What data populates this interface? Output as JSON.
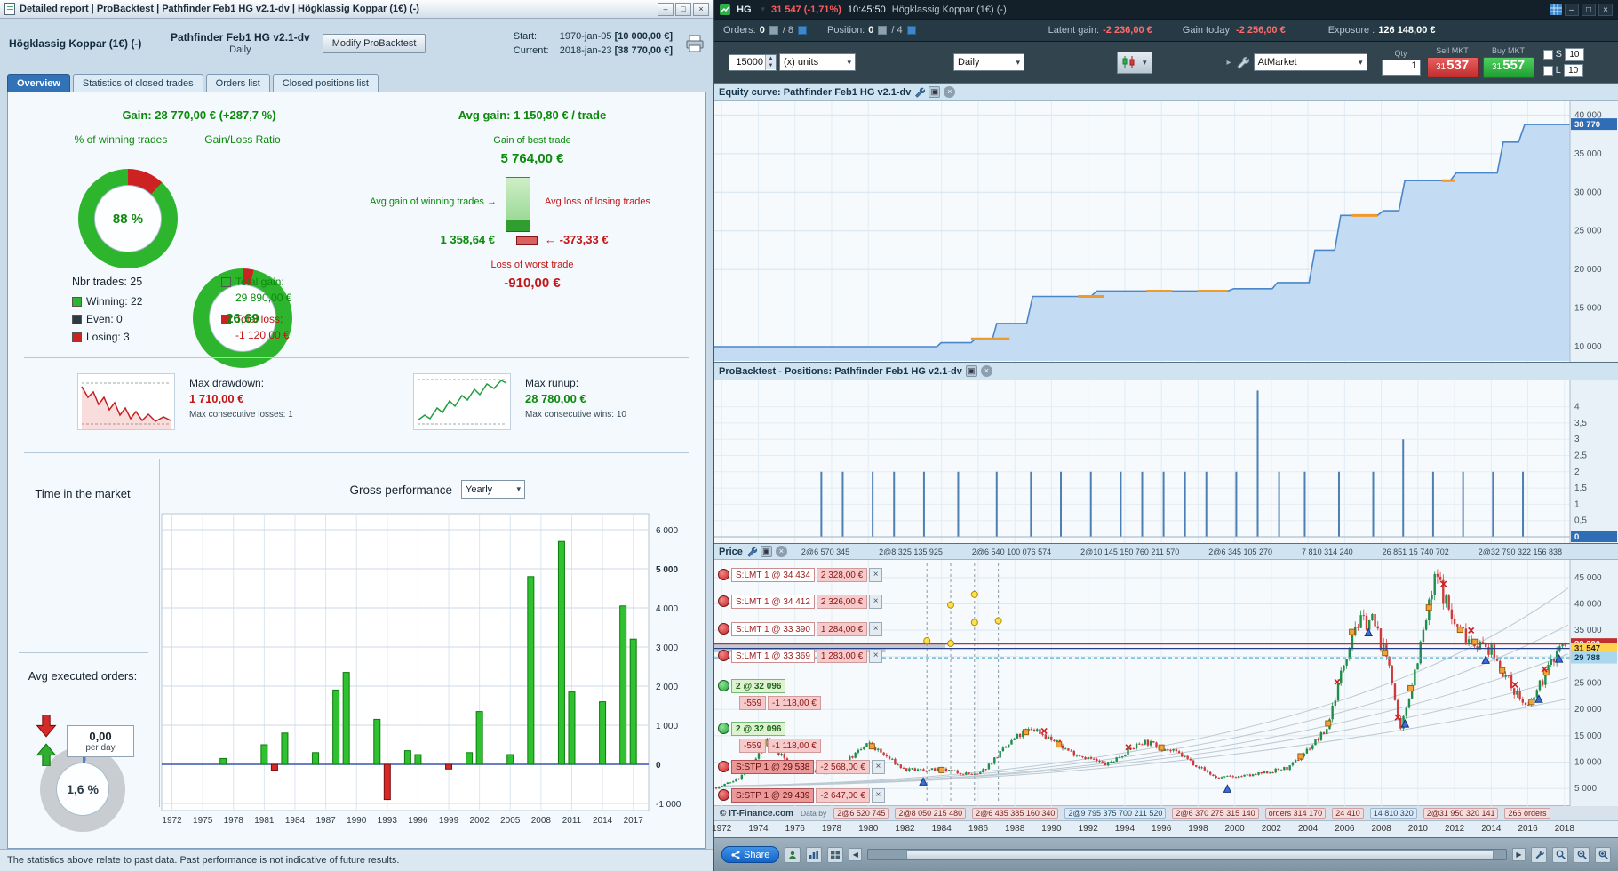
{
  "icons": {
    "caret": "▾",
    "close": "×",
    "minimize": "–",
    "maximize": "□",
    "spin_up": "▲",
    "spin_down": "▼",
    "left": "◀",
    "right": "▶",
    "play": "▸",
    "arrow_right": "→",
    "arrow_left": "←"
  },
  "report": {
    "title": "Detailed report | ProBacktest | Pathfinder Feb1 HG v2.1-dv | Högklassig Koppar (1€) (-)",
    "header": {
      "instrument": "Högklassig Koppar (1€) (-)",
      "strategy": "Pathfinder Feb1 HG v2.1-dv",
      "timeframe": "Daily",
      "modify_button": "Modify ProBacktest",
      "start_label": "Start:",
      "start_date": "1970-jan-05",
      "start_amount": "[10 000,00 €]",
      "current_label": "Current:",
      "current_date": "2018-jan-23",
      "current_amount": "[38 770,00 €]"
    },
    "tabs": [
      {
        "label": "Overview"
      },
      {
        "label": "Statistics of closed trades"
      },
      {
        "label": "Orders list"
      },
      {
        "label": "Closed positions list"
      }
    ],
    "stats": {
      "gain_label": "Gain:",
      "gain_value": "28 770,00 € (+287,7 %)",
      "winning_title": "% of winning trades",
      "winning_value": "88 %",
      "ratio_title": "Gain/Loss Ratio",
      "ratio_value": "26,69",
      "nbr_trades": "Nbr trades: 25",
      "winning": "Winning: 22",
      "even": "Even: 0",
      "losing": "Losing: 3",
      "total_gain_label": "Total gain:",
      "total_gain_value": "29 890,00 €",
      "total_loss_label": "Total loss:",
      "total_loss_value": "-1 120,00 €",
      "avg_gain_label": "Avg gain:",
      "avg_gain_value": "1 150,80 € / trade",
      "best_trade_label": "Gain of best trade",
      "best_trade_value": "5 764,00 €",
      "avg_win_label": "Avg gain of winning trades",
      "avg_win_value": "1 358,64 €",
      "avg_loss_label": "Avg loss of losing trades",
      "avg_loss_value": "-373,33 €",
      "worst_trade_label": "Loss of worst trade",
      "worst_trade_value": "-910,00 €",
      "max_dd_label": "Max drawdown:",
      "max_dd_value": "1 710,00 €",
      "max_dd_sub": "Max consecutive losses: 1",
      "max_ru_label": "Max runup:",
      "max_ru_value": "28 780,00 €",
      "max_ru_sub": "Max consecutive wins: 10",
      "time_market_title": "Time in the market",
      "time_market_value": "1,6 %",
      "avg_orders_title": "Avg executed orders:",
      "avg_orders_value": "0,00",
      "avg_orders_unit": "per day"
    },
    "gross_perf_title": "Gross performance",
    "gross_perf_period": "Yearly",
    "status": "The statistics above relate to past data. Past performance is not indicative of future results."
  },
  "chart": {
    "title": {
      "symbol": "HG",
      "price": "31 547 (-1,71%)",
      "time": "10:45:50",
      "name": "Högklassig Koppar (1€) (-)"
    },
    "orders_row": {
      "orders_label": "Orders:",
      "orders_value": "0",
      "orders_max": "/ 8",
      "position_label": "Position:",
      "position_value": "0",
      "position_max": "/ 4",
      "latent_label": "Latent gain:",
      "latent_value": "-2 236,00 €",
      "today_label": "Gain today:",
      "today_value": "-2 256,00 €",
      "exposure_label": "Exposure :",
      "exposure_value": "126 148,00 €"
    },
    "toolbar": {
      "quantity": "15000",
      "units": "(x) units",
      "timeframe": "Daily",
      "order_type": "AtMarket",
      "qty_label": "Qty",
      "qty_value": "1",
      "sell_label": "Sell MKT",
      "sell_small": "31",
      "sell_big": "537",
      "buy_label": "Buy MKT",
      "buy_small": "31",
      "buy_big": "557",
      "s_label": "S",
      "s_value": "10",
      "l_label": "L",
      "l_value": "10"
    },
    "equity_panel_title": "Equity curve: Pathfinder Feb1 HG v2.1-dv",
    "positions_panel_title": "ProBacktest - Positions: Pathfinder Feb1 HG v2.1-dv",
    "price_panel": {
      "title": "Price",
      "annotations_top": [
        "2@6 570 345",
        "2@8 325 135 925",
        "2@6 540 100 076 574",
        "2@10 145 150 760 211 570",
        "2@6 345 105 270",
        "7 810 314 240",
        "26 851 15 740 702",
        "2@32 790 322 156 838"
      ],
      "copyright": "© IT-Finance.com",
      "data_by": "Data by",
      "annotations_bottom": [
        "2@6 520 745",
        "2@8 050 215 480",
        "2@6 435 385 160 340",
        "2@9 795 375 700 211 520",
        "2@6 370 275 315 140",
        "orders 314 170",
        "24 410",
        "14 810 320",
        "2@31 950 320 141",
        "266 orders"
      ],
      "orders": [
        {
          "kind": "limit",
          "label": "S:LMT 1 @ 34 434",
          "value": "2 328,00 €"
        },
        {
          "kind": "limit",
          "label": "S:LMT 1 @ 34 412",
          "value": "2 326,00 €"
        },
        {
          "kind": "limit",
          "label": "S:LMT 1 @ 33 390",
          "value": "1 284,00 €"
        },
        {
          "kind": "limit",
          "label": "S:LMT 1 @ 33 369",
          "value": "1 283,00 €"
        },
        {
          "kind": "position",
          "label": "2 @ 32 096"
        },
        {
          "kind": "pnl",
          "label": "-559",
          "value": "-1 118,00 €"
        },
        {
          "kind": "position",
          "label": "2 @ 32 096"
        },
        {
          "kind": "pnl",
          "label": "-559",
          "value": "-1 118,00 €"
        },
        {
          "kind": "stop",
          "label": "S:STP 1 @ 29 538",
          "value": "-2 568,00 €"
        },
        {
          "kind": "stop",
          "label": "S:STP 1 @ 29 439",
          "value": "-2 647,00 €"
        }
      ]
    },
    "bottom_toolbar": {
      "share": "Share"
    }
  },
  "chart_data": [
    {
      "id": "winning_donut",
      "type": "pie",
      "title": "% of winning trades",
      "center_text": "88 %",
      "slices": [
        {
          "name": "losing",
          "pct": 12,
          "color": "#cc2222"
        },
        {
          "name": "winning",
          "pct": 88,
          "color": "#2db52d"
        }
      ]
    },
    {
      "id": "gainloss_donut",
      "type": "pie",
      "title": "Gain/Loss Ratio",
      "center_text": "26,69",
      "slices": [
        {
          "name": "loss",
          "pct": 3.6,
          "color": "#cc2222"
        },
        {
          "name": "gain",
          "pct": 96.4,
          "color": "#2db52d"
        }
      ]
    },
    {
      "id": "time_donut",
      "type": "pie",
      "title": "Time in the market",
      "center_text": "1,6 %",
      "slices": [
        {
          "name": "in_market",
          "pct": 1.6,
          "color": "#4f81c7"
        },
        {
          "name": "out_of_market",
          "pct": 98.4,
          "color": "#c9cdd2"
        }
      ]
    },
    {
      "id": "gross_performance",
      "type": "bar",
      "title": "Gross performance",
      "period": "Yearly",
      "ylim": [
        -1000,
        6000
      ],
      "yticks": [
        6000,
        5000,
        4000,
        3000,
        2000,
        1000,
        0,
        -1000
      ],
      "ytick_labels": [
        "6 000",
        "5 000",
        "4 000",
        "3 000",
        "2 000",
        "1 000",
        "0",
        "-1 000"
      ],
      "xticks": [
        1972,
        1975,
        1978,
        1981,
        1984,
        1987,
        1990,
        1993,
        1996,
        1999,
        2002,
        2005,
        2008,
        2011,
        2014,
        2017
      ],
      "bars": [
        [
          1977,
          150
        ],
        [
          1981,
          500
        ],
        [
          1982,
          -150
        ],
        [
          1983,
          800
        ],
        [
          1986,
          300
        ],
        [
          1988,
          1900
        ],
        [
          1989,
          2350
        ],
        [
          1992,
          1150
        ],
        [
          1993,
          -900
        ],
        [
          1995,
          350
        ],
        [
          1996,
          250
        ],
        [
          1999,
          -120
        ],
        [
          2001,
          300
        ],
        [
          2002,
          1350
        ],
        [
          2005,
          250
        ],
        [
          2007,
          4800
        ],
        [
          2010,
          5700
        ],
        [
          2011,
          1850
        ],
        [
          2014,
          1600
        ],
        [
          2016,
          4050
        ],
        [
          2017,
          3200
        ]
      ]
    },
    {
      "id": "equity_curve",
      "type": "area",
      "title": "Equity curve: Pathfinder Feb1 HG v2.1-dv",
      "ylim": [
        8500,
        41200
      ],
      "yticks": [
        40000,
        35000,
        30000,
        25000,
        20000,
        15000,
        10000
      ],
      "ytick_labels": [
        "40 000",
        "35 000",
        "30 000",
        "25 000",
        "20 000",
        "15 000",
        "10 000"
      ],
      "current": {
        "text": "38 770",
        "value": 38770
      },
      "points": [
        [
          0,
          10000
        ],
        [
          0.26,
          10000
        ],
        [
          0.265,
          10500
        ],
        [
          0.3,
          10500
        ],
        [
          0.305,
          11000
        ],
        [
          0.325,
          11000
        ],
        [
          0.33,
          13000
        ],
        [
          0.365,
          13000
        ],
        [
          0.372,
          16500
        ],
        [
          0.44,
          16500
        ],
        [
          0.447,
          17200
        ],
        [
          0.6,
          17200
        ],
        [
          0.607,
          17500
        ],
        [
          0.652,
          17500
        ],
        [
          0.658,
          18300
        ],
        [
          0.695,
          18300
        ],
        [
          0.702,
          22500
        ],
        [
          0.725,
          22500
        ],
        [
          0.732,
          27000
        ],
        [
          0.775,
          27000
        ],
        [
          0.782,
          27600
        ],
        [
          0.8,
          27600
        ],
        [
          0.807,
          31500
        ],
        [
          0.86,
          31500
        ],
        [
          0.867,
          32500
        ],
        [
          0.915,
          32500
        ],
        [
          0.922,
          36500
        ],
        [
          0.94,
          36500
        ],
        [
          0.947,
          38770
        ],
        [
          1,
          38770
        ]
      ],
      "drawdown_segments": [
        [
          0.3,
          0.345,
          11000
        ],
        [
          0.425,
          0.455,
          16500
        ],
        [
          0.505,
          0.535,
          17200
        ],
        [
          0.565,
          0.6,
          17200
        ],
        [
          0.745,
          0.775,
          27000
        ],
        [
          0.85,
          0.865,
          31500
        ]
      ]
    },
    {
      "id": "positions",
      "type": "bar",
      "title": "ProBacktest - Positions: Pathfinder Feb1 HG v2.1-dv",
      "ylim": [
        0,
        4.7
      ],
      "yticks": [
        4,
        3.5,
        3,
        2.5,
        2,
        1.5,
        1,
        0.5
      ],
      "ytick_labels": [
        "4",
        "3,5",
        "3",
        "2,5",
        "2",
        "1,5",
        "1",
        "0,5"
      ],
      "current": {
        "text": "0",
        "value": 0
      },
      "bars": [
        [
          0.125,
          2
        ],
        [
          0.15,
          2
        ],
        [
          0.185,
          2
        ],
        [
          0.21,
          2
        ],
        [
          0.245,
          2
        ],
        [
          0.285,
          2
        ],
        [
          0.33,
          2
        ],
        [
          0.37,
          2
        ],
        [
          0.405,
          2
        ],
        [
          0.44,
          2
        ],
        [
          0.475,
          2
        ],
        [
          0.5,
          2
        ],
        [
          0.525,
          2
        ],
        [
          0.55,
          2
        ],
        [
          0.575,
          2
        ],
        [
          0.61,
          2
        ],
        [
          0.635,
          4.5
        ],
        [
          0.66,
          2
        ],
        [
          0.69,
          2
        ],
        [
          0.73,
          2
        ],
        [
          0.77,
          2
        ],
        [
          0.805,
          3
        ],
        [
          0.84,
          2
        ],
        [
          0.875,
          2
        ],
        [
          0.91,
          2
        ],
        [
          0.945,
          2
        ]
      ]
    },
    {
      "id": "price",
      "type": "candlestick",
      "title": "Price",
      "x_range": [
        1971.6,
        2018.3
      ],
      "ylim": [
        2500,
        47500
      ],
      "yticks": [
        45000,
        40000,
        35000,
        30000,
        25000,
        20000,
        15000,
        10000,
        5000
      ],
      "ytick_labels": [
        "45 000",
        "40 000",
        "35 000",
        "30 000",
        "25 000",
        "20 000",
        "15 000",
        "10 000",
        "5 000"
      ],
      "price_labels": [
        {
          "text": "32 390",
          "value": 32390,
          "color": "#c03030",
          "fg": "#ffffff"
        },
        {
          "text": "31 547",
          "value": 31547,
          "color": "#ffd24d",
          "fg": "#222222"
        },
        {
          "text": "29 788",
          "value": 29788,
          "color": "#a9d7ee",
          "fg": "#17405e"
        }
      ],
      "hlines": [
        {
          "value": 32390,
          "color": "#c03030"
        },
        {
          "value": 31547,
          "color": "#27408b"
        },
        {
          "value": 29788,
          "color": "#5ab4d6",
          "dash": "4,3"
        }
      ],
      "xticks": [
        1972,
        1974,
        1976,
        1978,
        1980,
        1982,
        1984,
        1986,
        1988,
        1990,
        1992,
        1994,
        1996,
        1998,
        2000,
        2002,
        2004,
        2006,
        2008,
        2010,
        2012,
        2014,
        2016,
        2018
      ],
      "trend_anchors": [
        [
          1971.8,
          5200
        ],
        [
          1973,
          7000
        ],
        [
          1974.5,
          14000
        ],
        [
          1976,
          8500
        ],
        [
          1978,
          8000
        ],
        [
          1980,
          13500
        ],
        [
          1982,
          8500
        ],
        [
          1984,
          8500
        ],
        [
          1986,
          7500
        ],
        [
          1988,
          14500
        ],
        [
          1989,
          16500
        ],
        [
          1991,
          12000
        ],
        [
          1993,
          9500
        ],
        [
          1995,
          14000
        ],
        [
          1997,
          11500
        ],
        [
          1999,
          7000
        ],
        [
          2001,
          7500
        ],
        [
          2003,
          9000
        ],
        [
          2005,
          16000
        ],
        [
          2006.5,
          36000
        ],
        [
          2007.5,
          37000
        ],
        [
          2008.5,
          28000
        ],
        [
          2009,
          15000
        ],
        [
          2010,
          30000
        ],
        [
          2011,
          45500
        ],
        [
          2012,
          36000
        ],
        [
          2013,
          33000
        ],
        [
          2014,
          31000
        ],
        [
          2015,
          25000
        ],
        [
          2016,
          20000
        ],
        [
          2017,
          27000
        ],
        [
          2017.8,
          32500
        ],
        [
          2018.1,
          31547
        ]
      ],
      "trend_curves": [
        [
          2004,
          7000,
          43000
        ],
        [
          2002,
          6500,
          36000
        ],
        [
          2000,
          6000,
          30500
        ],
        [
          1998,
          6000,
          26000
        ],
        [
          1996,
          5800,
          22000
        ]
      ],
      "dashed_vlines": [
        1983.2,
        1984.5,
        1985.8,
        1987.1
      ],
      "entry_markers": [
        1974.6,
        1980.2,
        1984.0,
        1988.6,
        1990.4,
        1996.0,
        2003.6,
        2005.1,
        2006.4,
        2008.2,
        2009.6,
        2010.6,
        2012.3,
        2013.1,
        2014.6,
        2016.2,
        2017.0
      ],
      "exit_markers": [
        1989.6,
        1994.2,
        2005.6,
        2008.9,
        2011.4,
        2012.9,
        2015.3,
        2016.9
      ],
      "arrow_markers": [
        1983.0,
        1999.6,
        2007.3,
        2009.3,
        2013.7,
        2016.6,
        2017.7
      ],
      "yellow_dots": [
        [
          1984.5,
          39800
        ],
        [
          1985.8,
          41800
        ],
        [
          1985.8,
          36500
        ],
        [
          1984.5,
          32500
        ],
        [
          1987.1,
          36800
        ],
        [
          1983.2,
          33000
        ]
      ],
      "bands": [
        {
          "x2": 0.27,
          "v1": 32300,
          "v2": 31500
        },
        {
          "x2": 0.2,
          "v1": 31450,
          "v2": 30800
        }
      ]
    }
  ]
}
